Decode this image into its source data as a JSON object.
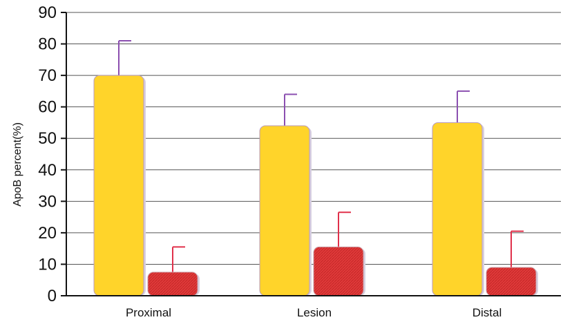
{
  "chart_data": {
    "type": "bar",
    "title": "",
    "xlabel": "",
    "ylabel": "ApoB percent(%)",
    "ylim": [
      0,
      90
    ],
    "yticks": [
      0,
      10,
      20,
      30,
      40,
      50,
      60,
      70,
      80,
      90
    ],
    "grid": true,
    "categories": [
      "Proximal",
      "Lesion",
      "Distal"
    ],
    "series": [
      {
        "values": [
          70,
          54,
          55
        ],
        "error_upper": [
          11,
          10,
          10
        ],
        "color": "#FFD42A",
        "error_color": "#8B4FB0"
      },
      {
        "values": [
          7.5,
          15.5,
          9
        ],
        "error_upper": [
          8,
          11,
          11.5
        ],
        "color": "#E03A3A",
        "error_color": "#E0304A"
      }
    ]
  }
}
